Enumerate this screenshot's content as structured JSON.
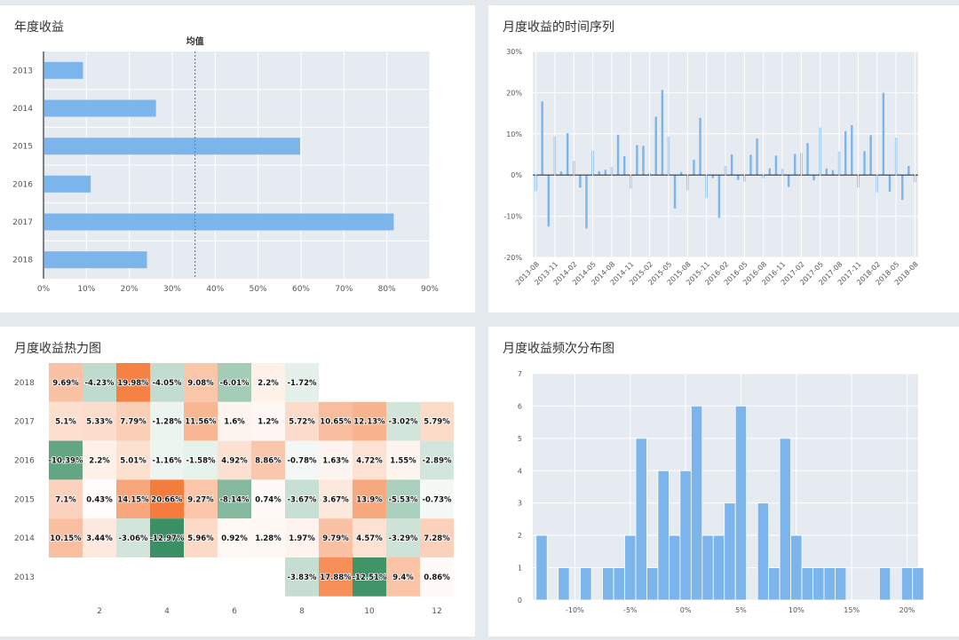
{
  "colors": {
    "bar": "#7cb5ec",
    "plot_bg": "#e6ebf2",
    "page_bg": "#e4e9ee",
    "avg_line": "#4a8fd0",
    "heat_low": "#3a9064",
    "heat_mid": "#ffffff",
    "heat_high": "#f47b3b"
  },
  "panels": {
    "annual_title": "年度收益",
    "monthly_series_title": "月度收益的时间序列",
    "heatmap_title": "月度收益热力图",
    "histogram_title": "月度收益频次分布图"
  },
  "chart_data": [
    {
      "id": "annual",
      "type": "bar",
      "orientation": "horizontal",
      "title": "年度收益",
      "categories": [
        "2013",
        "2014",
        "2015",
        "2016",
        "2017",
        "2018"
      ],
      "values": [
        9.2,
        26.2,
        59.8,
        11.0,
        81.6,
        24.1
      ],
      "xlim": [
        0,
        90
      ],
      "xticks": [
        "0%",
        "10%",
        "20%",
        "30%",
        "40%",
        "50%",
        "60%",
        "70%",
        "80%",
        "90%"
      ],
      "mean": 35.3,
      "mean_label": "均值"
    },
    {
      "id": "monthly_series",
      "type": "bar",
      "title": "月度收益的时间序列",
      "ylim": [
        -20,
        30
      ],
      "yticks": [
        "30%",
        "20%",
        "10%",
        "0%",
        "-10%",
        "-20%"
      ],
      "xticks": [
        "2013-08",
        "2013-11",
        "2014-02",
        "2014-05",
        "2014-08",
        "2014-11",
        "2015-02",
        "2015-05",
        "2015-08",
        "2015-11",
        "2016-02",
        "2016-05",
        "2016-08",
        "2016-11",
        "2017-02",
        "2017-05",
        "2017-08",
        "2017-11",
        "2018-02",
        "2018-05",
        "2018-08"
      ],
      "months": [
        "2013-08",
        "2013-09",
        "2013-10",
        "2013-11",
        "2013-12",
        "2014-01",
        "2014-02",
        "2014-03",
        "2014-04",
        "2014-05",
        "2014-06",
        "2014-07",
        "2014-08",
        "2014-09",
        "2014-10",
        "2014-11",
        "2014-12",
        "2015-01",
        "2015-02",
        "2015-03",
        "2015-04",
        "2015-05",
        "2015-06",
        "2015-07",
        "2015-08",
        "2015-09",
        "2015-10",
        "2015-11",
        "2015-12",
        "2016-01",
        "2016-02",
        "2016-03",
        "2016-04",
        "2016-05",
        "2016-06",
        "2016-07",
        "2016-08",
        "2016-09",
        "2016-10",
        "2016-11",
        "2016-12",
        "2017-01",
        "2017-02",
        "2017-03",
        "2017-04",
        "2017-05",
        "2017-06",
        "2017-07",
        "2017-08",
        "2017-09",
        "2017-10",
        "2017-11",
        "2017-12",
        "2018-01",
        "2018-02",
        "2018-03",
        "2018-04",
        "2018-05",
        "2018-06",
        "2018-07",
        "2018-08"
      ],
      "values": [
        -3.83,
        17.88,
        -12.51,
        9.4,
        0.86,
        10.15,
        3.44,
        -3.06,
        -12.97,
        5.96,
        0.92,
        1.28,
        1.97,
        9.79,
        4.57,
        -3.29,
        7.28,
        7.1,
        0.43,
        14.15,
        20.66,
        9.27,
        -8.14,
        0.74,
        -3.67,
        3.67,
        13.9,
        -5.53,
        -0.73,
        -10.39,
        2.2,
        5.01,
        -1.16,
        -1.58,
        4.92,
        8.86,
        -0.78,
        1.63,
        4.72,
        1.55,
        -2.89,
        5.1,
        5.33,
        7.79,
        -1.28,
        11.56,
        1.6,
        1.2,
        5.72,
        10.65,
        12.13,
        -3.02,
        5.79,
        9.69,
        -4.23,
        19.98,
        -4.05,
        9.08,
        -6.01,
        2.2,
        -1.72
      ]
    },
    {
      "id": "heatmap",
      "type": "heatmap",
      "title": "月度收益热力图",
      "y_categories": [
        "2018",
        "2017",
        "2016",
        "2015",
        "2014",
        "2013"
      ],
      "xticks": [
        "2",
        "4",
        "6",
        "8",
        "10",
        "12"
      ],
      "rows": [
        [
          "9.69%",
          "-4.23%",
          "19.98%",
          "-4.05%",
          "9.08%",
          "-6.01%",
          "2.2%",
          "-1.72%",
          "",
          "",
          "",
          ""
        ],
        [
          "5.1%",
          "5.33%",
          "7.79%",
          "-1.28%",
          "11.56%",
          "1.6%",
          "1.2%",
          "5.72%",
          "10.65%",
          "12.13%",
          "-3.02%",
          "5.79%"
        ],
        [
          "-10.39%",
          "2.2%",
          "5.01%",
          "-1.16%",
          "-1.58%",
          "4.92%",
          "8.86%",
          "-0.78%",
          "1.63%",
          "4.72%",
          "1.55%",
          "-2.89%"
        ],
        [
          "7.1%",
          "0.43%",
          "14.15%",
          "20.66%",
          "9.27%",
          "-8.14%",
          "0.74%",
          "-3.67%",
          "3.67%",
          "13.9%",
          "-5.53%",
          "-0.73%"
        ],
        [
          "10.15%",
          "3.44%",
          "-3.06%",
          "-12.97%",
          "5.96%",
          "0.92%",
          "1.28%",
          "1.97%",
          "9.79%",
          "4.57%",
          "-3.29%",
          "7.28%"
        ],
        [
          "",
          "",
          "",
          "",
          "",
          "",
          "",
          "-3.83%",
          "17.88%",
          "-12.51%",
          "9.4%",
          "0.86%"
        ]
      ],
      "color_range": [
        -13,
        21
      ]
    },
    {
      "id": "histogram",
      "type": "bar",
      "title": "月度收益频次分布图",
      "bin_width": 1,
      "bin_start": -13.5,
      "counts": [
        2,
        0,
        1,
        0,
        1,
        0,
        1,
        1,
        2,
        5,
        1,
        4,
        2,
        4,
        6,
        2,
        2,
        3,
        6,
        0,
        3,
        1,
        5,
        2,
        1,
        1,
        1,
        1,
        0,
        0,
        0,
        1,
        0,
        1,
        1
      ],
      "xlim": [
        -13.8,
        21
      ],
      "ylim": [
        0,
        7
      ],
      "yticks": [
        "0",
        "1",
        "2",
        "3",
        "4",
        "5",
        "6",
        "7"
      ],
      "xticks": [
        "-10%",
        "-5%",
        "0%",
        "5%",
        "10%",
        "15%",
        "20%"
      ]
    }
  ]
}
